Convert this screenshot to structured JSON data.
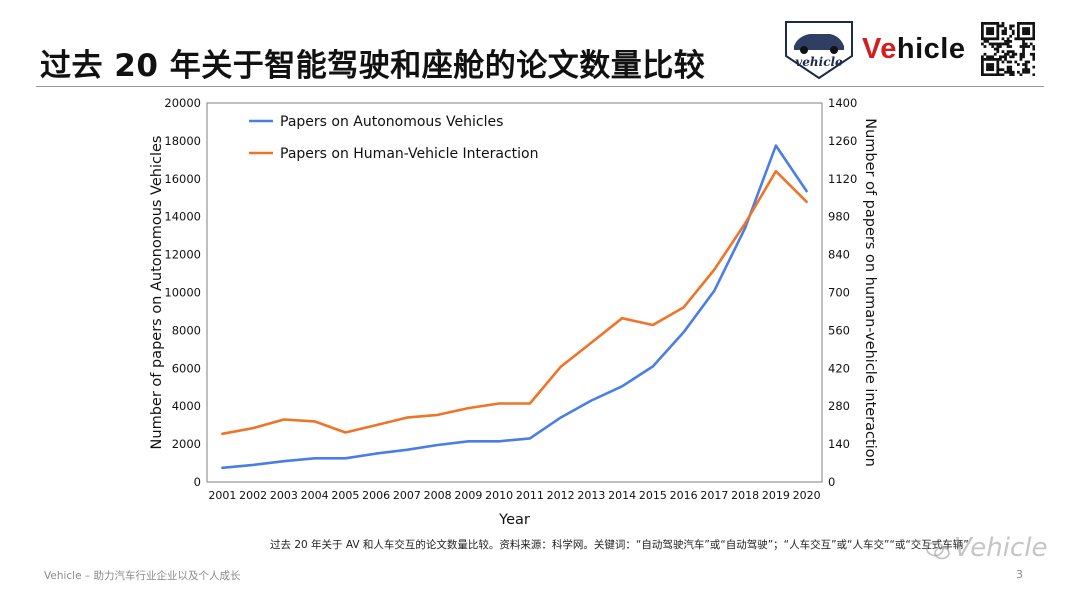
{
  "slide": {
    "title": "过去 20 年关于智能驾驶和座舱的论文数量比较",
    "brand_prefix": "Ve",
    "brand_suffix": "hicle",
    "caption": "过去 20 年关于 AV 和人车交互的论文数量比较。资料来源：科学网。关键词：“自动驾驶汽车”或“自动驾驶”；“人车交互”或“人车交”“或“交互式车辆”",
    "footer": "Vehicle – 助力汽车行业企业以及个人成长",
    "page_number": "3",
    "watermark": "Vehicle"
  },
  "logo": {
    "badge_text": "vehicle"
  },
  "colors": {
    "blue": "#4a7ee6",
    "orange": "#ee7428",
    "accent_red": "#d11e1e"
  },
  "chart_data": {
    "type": "line",
    "xlabel": "Year",
    "ylabel": "Number of papers on Autonomous Vehicles",
    "y2label": "Number of papers on human-vehicle interaction",
    "legend_position": "top-left",
    "grid": false,
    "x": [
      2001,
      2002,
      2003,
      2004,
      2005,
      2006,
      2007,
      2008,
      2009,
      2010,
      2011,
      2012,
      2013,
      2014,
      2015,
      2016,
      2017,
      2018,
      2019,
      2020
    ],
    "ylim": [
      0,
      20000
    ],
    "yticks": [
      0,
      2000,
      4000,
      6000,
      8000,
      10000,
      12000,
      14000,
      16000,
      18000,
      20000
    ],
    "y2lim": [
      0,
      1400
    ],
    "y2ticks": [
      0,
      140,
      280,
      420,
      560,
      700,
      840,
      980,
      1120,
      1260,
      1400
    ],
    "series": [
      {
        "name": "Papers on Autonomous Vehicles",
        "axis": "left",
        "color": "#4a7ee6",
        "values": [
          750,
          900,
          1100,
          1250,
          1250,
          1500,
          1700,
          1950,
          2150,
          2150,
          2300,
          3400,
          4300,
          5050,
          6100,
          7900,
          10100,
          13400,
          17750,
          15350
        ]
      },
      {
        "name": "Papers on Human-Vehicle Interaction",
        "axis": "right",
        "color": "#ee7428",
        "values": [
          178,
          199,
          231,
          224,
          183,
          210,
          238,
          248,
          273,
          290,
          290,
          425,
          515,
          605,
          580,
          645,
          785,
          955,
          1148,
          1035
        ]
      }
    ]
  }
}
